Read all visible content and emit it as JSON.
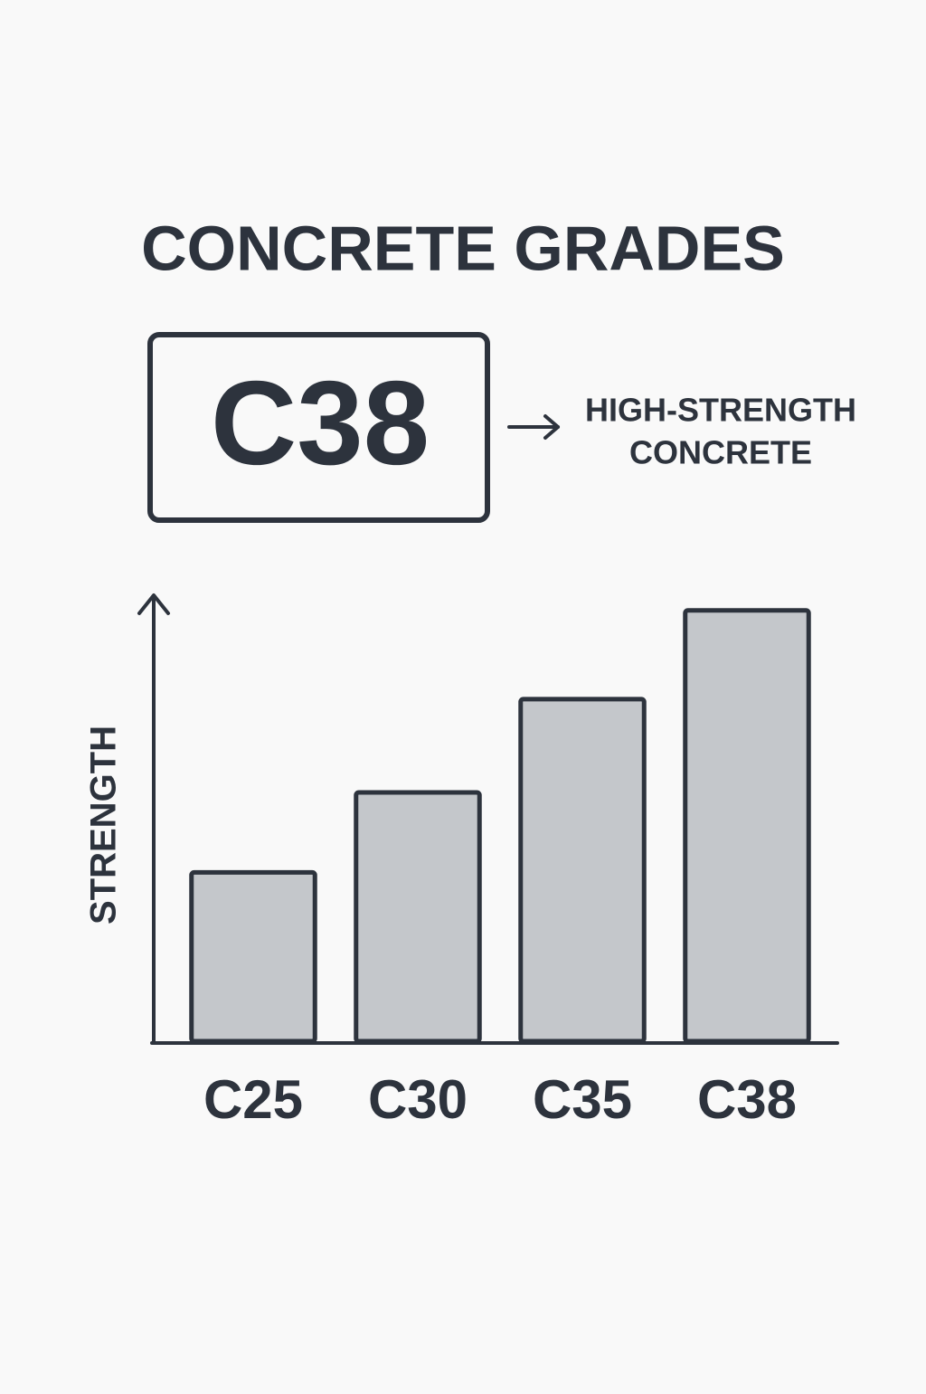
{
  "chart_data": {
    "type": "bar",
    "title": "CONCRETE GRADES",
    "highlight": "C38",
    "annotation_lines": [
      "HIGH-STRENGTH",
      "CONCRETE"
    ],
    "y_label": "STRENGTH",
    "categories": [
      "C25",
      "C30",
      "C35",
      "C38"
    ],
    "values": [
      38,
      56,
      77,
      97
    ],
    "ylim": [
      0,
      100
    ],
    "color": "#c4c7cb",
    "stroke": "#2d333d"
  }
}
